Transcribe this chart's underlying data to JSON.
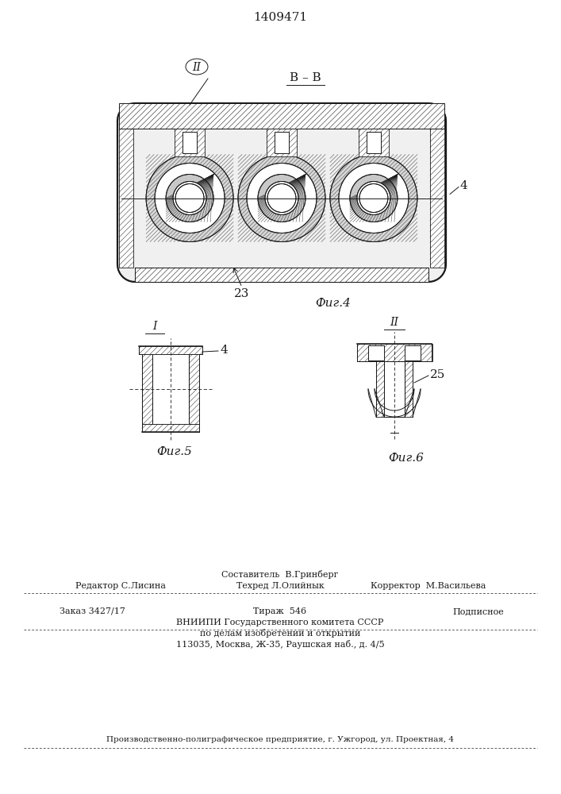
{
  "title": "1409471",
  "bg_color": "#ffffff",
  "line_color": "#1a1a1a",
  "fig4_label": "Фиг.4",
  "fig5_label": "Фиг.5",
  "fig6_label": "Фиг.6",
  "section_label": "В – В",
  "footer_line1": "Составитель  В.Гринберг",
  "footer_line2_left": "Редактор С.Лисина",
  "footer_line2_mid": "Техред Л.Олийнык",
  "footer_line2_right": "Корректор  М.Васильева",
  "footer_line3_left": "Заказ 3427/17",
  "footer_line3_mid": "Тираж  546",
  "footer_line3_right": "Подписное",
  "footer_line4": "ВНИИПИ Государственного комитета СССР",
  "footer_line5": "по делам изобретений и открытий",
  "footer_line6": "113035, Москва, Ж-35, Раушская наб., д. 4/5",
  "footer_line7": "Производственно-полиграфическое предприятие, г. Ужгород, ул. Проектная, 4"
}
